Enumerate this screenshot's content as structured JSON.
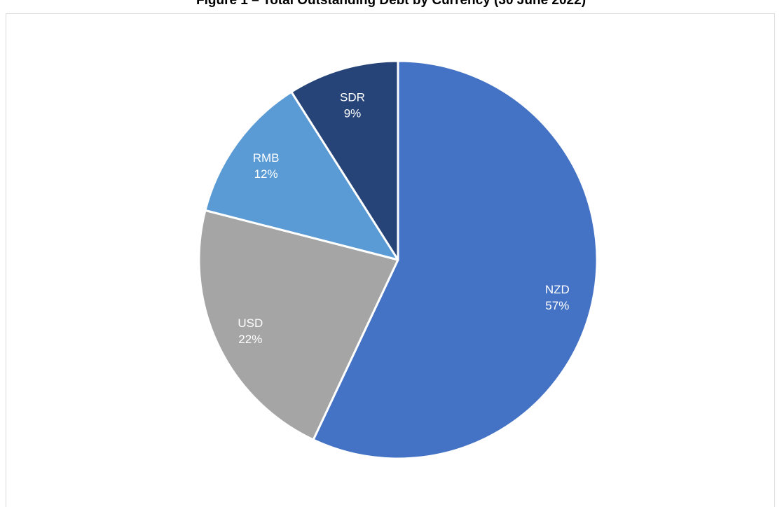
{
  "chart_data": {
    "type": "pie",
    "title": "Figure 1 – Total Outstanding Debt by Currency (30 June 2022)",
    "slices": [
      {
        "label": "NZD",
        "value": 57,
        "display": "57%",
        "color": "#4472c4"
      },
      {
        "label": "USD",
        "value": 22,
        "display": "22%",
        "color": "#a5a5a5"
      },
      {
        "label": "RMB",
        "value": 12,
        "display": "12%",
        "color": "#5b9bd5"
      },
      {
        "label": "SDR",
        "value": 9,
        "display": "9%",
        "color": "#264478"
      }
    ],
    "start": "12 o'clock",
    "direction": "clockwise",
    "legend": "none",
    "data_labels": "inside"
  }
}
